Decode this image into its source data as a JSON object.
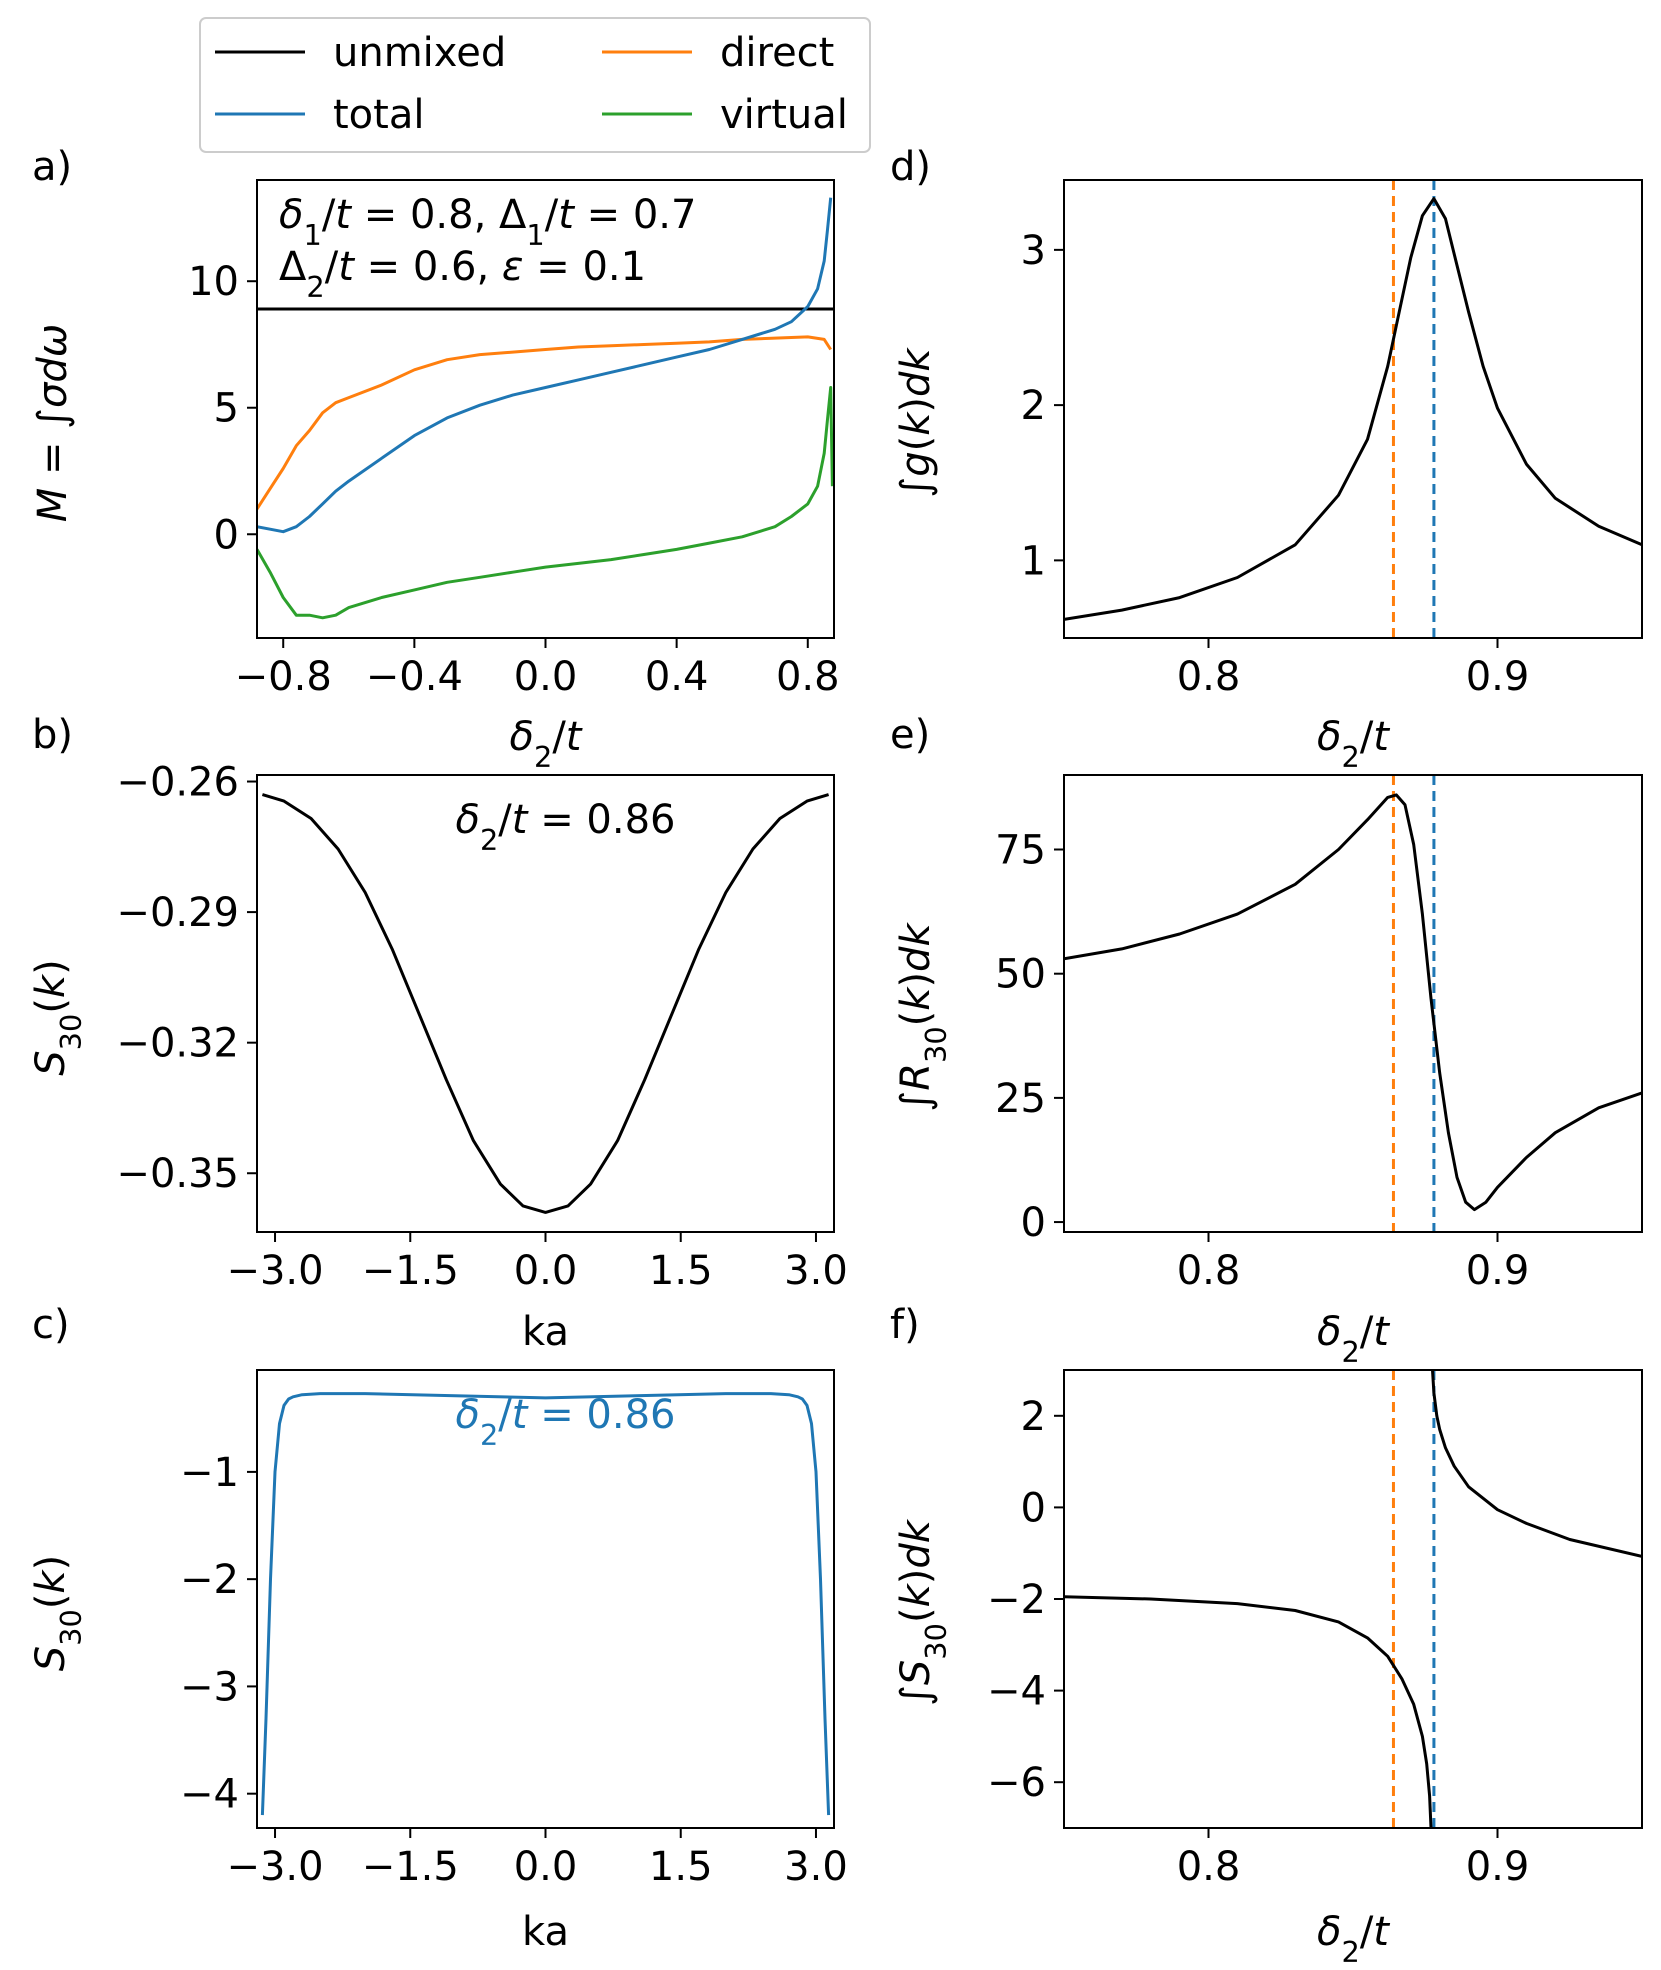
{
  "figure": {
    "legend": {
      "entries": [
        {
          "label": "unmixed",
          "color": "#000000"
        },
        {
          "label": "direct",
          "color": "#ff7f0e"
        },
        {
          "label": "total",
          "color": "#1f77b4"
        },
        {
          "label": "virtual",
          "color": "#2ca02c"
        }
      ]
    }
  },
  "chart_data": [
    {
      "id": "a",
      "panel_label": "a)",
      "type": "line",
      "xlabel": "δ2/t",
      "ylabel": "M = ∫σdω",
      "annotations": [
        "δ1/t = 0.8, Δ1/t = 0.7",
        "Δ2/t = 0.6, ε = 0.1"
      ],
      "xlim": [
        -0.88,
        0.88
      ],
      "ylim": [
        -4.1,
        14
      ],
      "xticks": [
        -0.8,
        -0.4,
        0.0,
        0.4,
        0.8
      ],
      "xticklabels": [
        "−0.8",
        "−0.4",
        "0.0",
        "0.4",
        "0.8"
      ],
      "yticks": [
        0,
        5,
        10
      ],
      "yticklabels": [
        "0",
        "5",
        "10"
      ],
      "series": [
        {
          "name": "unmixed",
          "color": "#000000",
          "x": [
            -0.88,
            0.88
          ],
          "y": [
            8.9,
            8.9
          ]
        },
        {
          "name": "direct",
          "color": "#ff7f0e",
          "x": [
            -0.88,
            -0.84,
            -0.8,
            -0.76,
            -0.72,
            -0.68,
            -0.64,
            -0.6,
            -0.5,
            -0.4,
            -0.3,
            -0.2,
            -0.1,
            0.0,
            0.1,
            0.2,
            0.3,
            0.4,
            0.5,
            0.6,
            0.7,
            0.8,
            0.85,
            0.87
          ],
          "y": [
            1.0,
            1.8,
            2.6,
            3.5,
            4.1,
            4.8,
            5.2,
            5.4,
            5.9,
            6.5,
            6.9,
            7.1,
            7.2,
            7.3,
            7.4,
            7.45,
            7.5,
            7.55,
            7.6,
            7.7,
            7.75,
            7.8,
            7.7,
            7.3
          ]
        },
        {
          "name": "total",
          "color": "#1f77b4",
          "x": [
            -0.88,
            -0.84,
            -0.8,
            -0.76,
            -0.72,
            -0.68,
            -0.64,
            -0.6,
            -0.5,
            -0.4,
            -0.3,
            -0.2,
            -0.1,
            0.0,
            0.1,
            0.2,
            0.3,
            0.4,
            0.5,
            0.6,
            0.7,
            0.75,
            0.8,
            0.83,
            0.85,
            0.86,
            0.87
          ],
          "y": [
            0.3,
            0.2,
            0.1,
            0.3,
            0.7,
            1.2,
            1.7,
            2.1,
            3.0,
            3.9,
            4.6,
            5.1,
            5.5,
            5.8,
            6.1,
            6.4,
            6.7,
            7.0,
            7.3,
            7.7,
            8.1,
            8.4,
            9.0,
            9.7,
            10.8,
            12.0,
            13.3
          ]
        },
        {
          "name": "virtual",
          "color": "#2ca02c",
          "x": [
            -0.88,
            -0.84,
            -0.8,
            -0.76,
            -0.72,
            -0.68,
            -0.64,
            -0.6,
            -0.5,
            -0.4,
            -0.3,
            -0.2,
            -0.1,
            0.0,
            0.1,
            0.2,
            0.3,
            0.4,
            0.5,
            0.6,
            0.7,
            0.75,
            0.8,
            0.83,
            0.85,
            0.86,
            0.87,
            0.875
          ],
          "y": [
            -0.6,
            -1.5,
            -2.5,
            -3.2,
            -3.2,
            -3.3,
            -3.2,
            -2.9,
            -2.5,
            -2.2,
            -1.9,
            -1.7,
            -1.5,
            -1.3,
            -1.15,
            -1.0,
            -0.8,
            -0.6,
            -0.35,
            -0.1,
            0.3,
            0.7,
            1.2,
            1.9,
            3.2,
            4.5,
            5.8,
            1.9
          ]
        }
      ]
    },
    {
      "id": "b",
      "panel_label": "b)",
      "type": "line",
      "xlabel": "ka",
      "ylabel": "S30(k)",
      "annotations": [
        "δ2/t = 0.86"
      ],
      "annotation_color": "#000000",
      "xlim": [
        -3.2,
        3.2
      ],
      "ylim": [
        -0.3635,
        -0.2585
      ],
      "xticks": [
        -3.0,
        -1.5,
        0.0,
        1.5,
        3.0
      ],
      "xticklabels": [
        "−3.0",
        "−1.5",
        "0.0",
        "1.5",
        "3.0"
      ],
      "yticks": [
        -0.35,
        -0.32,
        -0.29,
        -0.26
      ],
      "yticklabels": [
        "−0.35",
        "−0.32",
        "−0.29",
        "−0.26"
      ],
      "series": [
        {
          "name": "S30",
          "color": "#000000",
          "x": [
            -3.14,
            -2.9,
            -2.6,
            -2.3,
            -2.0,
            -1.7,
            -1.4,
            -1.1,
            -0.8,
            -0.5,
            -0.25,
            0.0,
            0.25,
            0.5,
            0.8,
            1.1,
            1.4,
            1.7,
            2.0,
            2.3,
            2.6,
            2.9,
            3.14
          ],
          "y": [
            -0.263,
            -0.2645,
            -0.2685,
            -0.2755,
            -0.2855,
            -0.2985,
            -0.3135,
            -0.3285,
            -0.3425,
            -0.3525,
            -0.3575,
            -0.359,
            -0.3575,
            -0.3525,
            -0.3425,
            -0.3285,
            -0.3135,
            -0.2985,
            -0.2855,
            -0.2755,
            -0.2685,
            -0.2645,
            -0.263
          ]
        }
      ]
    },
    {
      "id": "c",
      "panel_label": "c)",
      "type": "line",
      "xlabel": "ka",
      "ylabel": "S30(k)",
      "annotations": [
        "δ2/t = 0.86"
      ],
      "annotation_color": "#1f77b4",
      "xlim": [
        -3.2,
        3.2
      ],
      "ylim": [
        -4.32,
        -0.05
      ],
      "xticks": [
        -3.0,
        -1.5,
        0.0,
        1.5,
        3.0
      ],
      "xticklabels": [
        "−3.0",
        "−1.5",
        "0.0",
        "1.5",
        "3.0"
      ],
      "yticks": [
        -4,
        -3,
        -2,
        -1
      ],
      "yticklabels": [
        "−4",
        "−3",
        "−2",
        "−1"
      ],
      "series": [
        {
          "name": "S30",
          "color": "#1f77b4",
          "x": [
            -3.14,
            -3.1,
            -3.05,
            -3.0,
            -2.95,
            -2.9,
            -2.85,
            -2.8,
            -2.7,
            -2.5,
            -2.0,
            -1.0,
            0.0,
            1.0,
            2.0,
            2.5,
            2.7,
            2.8,
            2.85,
            2.9,
            2.95,
            3.0,
            3.05,
            3.1,
            3.14
          ],
          "y": [
            -4.2,
            -3.3,
            -2.0,
            -1.0,
            -0.55,
            -0.38,
            -0.32,
            -0.3,
            -0.28,
            -0.27,
            -0.27,
            -0.29,
            -0.31,
            -0.29,
            -0.27,
            -0.27,
            -0.28,
            -0.3,
            -0.32,
            -0.38,
            -0.55,
            -1.0,
            -2.0,
            -3.3,
            -4.2
          ]
        }
      ]
    },
    {
      "id": "d",
      "panel_label": "d)",
      "type": "line",
      "xlabel": "δ2/t",
      "ylabel": "∫g(k)dk",
      "xlim": [
        0.75,
        0.95
      ],
      "ylim": [
        0.5,
        3.45
      ],
      "xticks": [
        0.8,
        0.9
      ],
      "xticklabels": [
        "0.8",
        "0.9"
      ],
      "yticks": [
        1,
        2,
        3
      ],
      "yticklabels": [
        "1",
        "2",
        "3"
      ],
      "vlines": [
        {
          "x": 0.864,
          "color": "#ff7f0e"
        },
        {
          "x": 0.878,
          "color": "#1f77b4"
        }
      ],
      "series": [
        {
          "name": "g",
          "color": "#000000",
          "x": [
            0.75,
            0.77,
            0.79,
            0.81,
            0.83,
            0.845,
            0.855,
            0.862,
            0.866,
            0.87,
            0.874,
            0.878,
            0.882,
            0.886,
            0.89,
            0.895,
            0.9,
            0.91,
            0.92,
            0.935,
            0.95
          ],
          "y": [
            0.62,
            0.68,
            0.76,
            0.89,
            1.1,
            1.42,
            1.78,
            2.25,
            2.6,
            2.95,
            3.22,
            3.33,
            3.2,
            2.9,
            2.6,
            2.25,
            1.98,
            1.62,
            1.4,
            1.22,
            1.1
          ]
        }
      ]
    },
    {
      "id": "e",
      "panel_label": "e)",
      "type": "line",
      "xlabel": "δ2/t",
      "ylabel": "∫R30(k)dk",
      "xlim": [
        0.75,
        0.95
      ],
      "ylim": [
        -2,
        90
      ],
      "xticks": [
        0.8,
        0.9
      ],
      "xticklabels": [
        "0.8",
        "0.9"
      ],
      "yticks": [
        0,
        25,
        50,
        75
      ],
      "yticklabels": [
        "0",
        "25",
        "50",
        "75"
      ],
      "vlines": [
        {
          "x": 0.864,
          "color": "#ff7f0e"
        },
        {
          "x": 0.878,
          "color": "#1f77b4"
        }
      ],
      "series": [
        {
          "name": "R30",
          "color": "#000000",
          "x": [
            0.75,
            0.77,
            0.79,
            0.81,
            0.83,
            0.845,
            0.855,
            0.862,
            0.865,
            0.868,
            0.871,
            0.874,
            0.877,
            0.88,
            0.883,
            0.886,
            0.889,
            0.892,
            0.896,
            0.9,
            0.91,
            0.92,
            0.935,
            0.95
          ],
          "y": [
            53,
            55,
            58,
            62,
            68,
            75,
            81,
            85.5,
            86,
            84,
            76,
            62,
            45,
            30,
            18,
            9,
            4,
            2.5,
            4,
            7,
            13,
            18,
            23,
            26
          ]
        }
      ]
    },
    {
      "id": "f",
      "panel_label": "f)",
      "type": "line",
      "xlabel": "δ2/t",
      "ylabel": "∫S30(k)dk",
      "xlim": [
        0.75,
        0.95
      ],
      "ylim": [
        -7,
        3
      ],
      "xticks": [
        0.8,
        0.9
      ],
      "xticklabels": [
        "0.8",
        "0.9"
      ],
      "yticks": [
        -6,
        -4,
        -2,
        0,
        2
      ],
      "yticklabels": [
        "−6",
        "−4",
        "−2",
        "0",
        "2"
      ],
      "vlines": [
        {
          "x": 0.864,
          "color": "#ff7f0e"
        },
        {
          "x": 0.878,
          "color": "#1f77b4"
        }
      ],
      "series": [
        {
          "name": "S30 left branch",
          "color": "#000000",
          "x": [
            0.75,
            0.78,
            0.81,
            0.83,
            0.845,
            0.855,
            0.862,
            0.867,
            0.871,
            0.874,
            0.8755,
            0.8765,
            0.877
          ],
          "y": [
            -1.95,
            -2.0,
            -2.1,
            -2.25,
            -2.5,
            -2.85,
            -3.25,
            -3.75,
            -4.3,
            -5.0,
            -5.6,
            -6.3,
            -7.0
          ]
        },
        {
          "name": "S30 right branch",
          "color": "#000000",
          "x": [
            0.8775,
            0.878,
            0.879,
            0.88,
            0.882,
            0.885,
            0.89,
            0.9,
            0.91,
            0.925,
            0.95
          ],
          "y": [
            3.0,
            2.5,
            2.0,
            1.7,
            1.3,
            0.9,
            0.45,
            -0.05,
            -0.35,
            -0.7,
            -1.07
          ]
        }
      ]
    }
  ]
}
